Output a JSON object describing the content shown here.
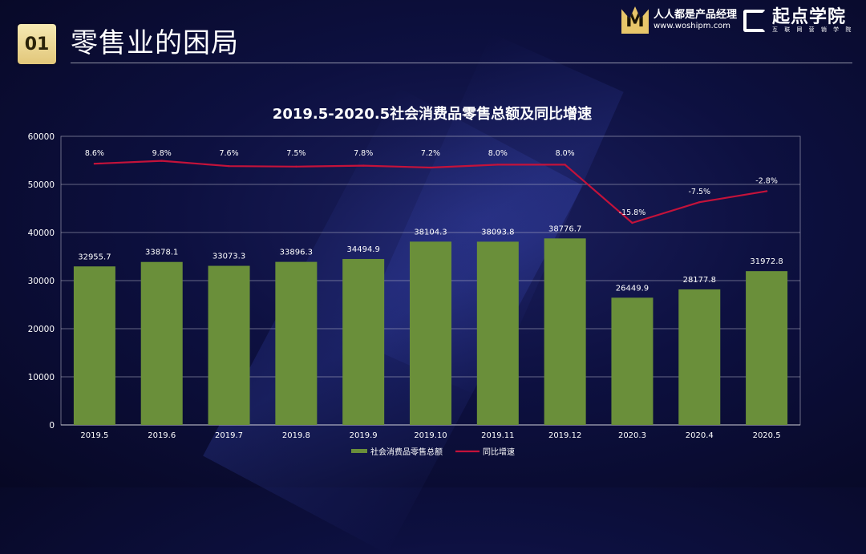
{
  "header": {
    "badge": "01",
    "title": "零售业的困局",
    "logo_primary_name": "人人都是产品经理",
    "logo_primary_url": "www.woshipm.com",
    "logo_primary_glyph": "M",
    "logo_secondary_name": "起点学院",
    "logo_secondary_tagline": "互 联 网 营 销 学 院"
  },
  "colors": {
    "bar": "#6a8f3a",
    "line": "#c4123a",
    "grid": "#b8b8c8",
    "accent_gold": "#e2c77a"
  },
  "chart_data": {
    "type": "bar+line",
    "title": "2019.5-2020.5社会消费品零售总额及同比增速",
    "categories": [
      "2019.5",
      "2019.6",
      "2019.7",
      "2019.8",
      "2019.9",
      "2019.10",
      "2019.11",
      "2019.12",
      "2020.3",
      "2020.4",
      "2020.5"
    ],
    "series": [
      {
        "name": "社会消费品零售总额",
        "type": "bar",
        "values": [
          32955.7,
          33878.1,
          33073.3,
          33896.3,
          34494.9,
          38104.3,
          38093.8,
          38776.7,
          26449.9,
          28177.8,
          31972.8
        ],
        "labels": [
          "32955.7",
          "33878.1",
          "33073.3",
          "33896.3",
          "34494.9",
          "38104.3",
          "38093.8",
          "38776.7",
          "26449.9",
          "28177.8",
          "31972.8"
        ]
      },
      {
        "name": "同比增速",
        "type": "line",
        "values": [
          8.6,
          9.8,
          7.6,
          7.5,
          7.8,
          7.2,
          8.0,
          8.0,
          -15.8,
          -7.5,
          -2.8
        ],
        "labels": [
          "8.6%",
          "9.8%",
          "7.6%",
          "7.5%",
          "7.8%",
          "7.2%",
          "8.0%",
          "8.0%",
          "-15.8%",
          "-7.5%",
          "-2.8%"
        ],
        "line_values_approx_axis": [
          54300,
          54900,
          53800,
          53700,
          53900,
          53500,
          54100,
          54100,
          42000,
          46300,
          48600
        ]
      }
    ],
    "ylim": [
      0,
      60000
    ],
    "yticks": [
      0,
      10000,
      20000,
      30000,
      40000,
      50000,
      60000
    ],
    "ytick_labels": [
      "0",
      "10000",
      "20000",
      "30000",
      "40000",
      "50000",
      "60000"
    ],
    "legend_position": "bottom",
    "grid": true
  }
}
